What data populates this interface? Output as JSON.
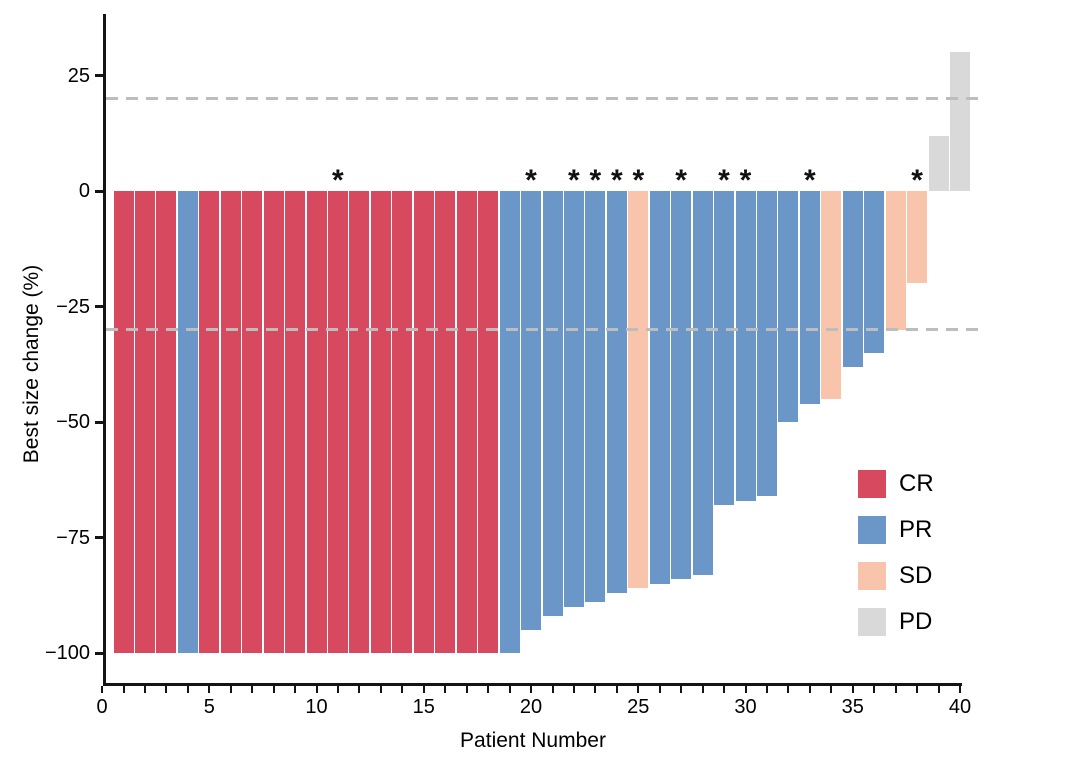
{
  "chart_data": {
    "type": "bar",
    "variant": "waterfall",
    "title": "",
    "xlabel": "Patient Number",
    "ylabel": "Best size change (%)",
    "x_range": [
      0,
      40
    ],
    "x_minor_tick_step": 1,
    "x_tick_labels": [
      0,
      5,
      10,
      15,
      20,
      25,
      30,
      35,
      40
    ],
    "y_tick_values": [
      25,
      0,
      -25,
      -50,
      -75,
      -100
    ],
    "y_tick_labels": [
      "25",
      "0",
      "−25",
      "−50",
      "−75",
      "−100"
    ],
    "ylim": [
      -105,
      37
    ],
    "grid": false,
    "reference_lines": [
      {
        "y": 20,
        "style": "dashed",
        "color": "#bdbdbd"
      },
      {
        "y": -30,
        "style": "dashed",
        "color": "#bdbdbd"
      }
    ],
    "marker_symbol": "*",
    "legend": {
      "position": "inside-right",
      "items": [
        {
          "label": "CR",
          "color": "#d6495f"
        },
        {
          "label": "PR",
          "color": "#6b97c8"
        },
        {
          "label": "SD",
          "color": "#f8c5ac"
        },
        {
          "label": "PD",
          "color": "#d9d9d9"
        }
      ]
    },
    "patients": [
      {
        "n": 1,
        "response": "CR",
        "change": -100,
        "star": false
      },
      {
        "n": 2,
        "response": "CR",
        "change": -100,
        "star": false
      },
      {
        "n": 3,
        "response": "CR",
        "change": -100,
        "star": false
      },
      {
        "n": 4,
        "response": "PR",
        "change": -100,
        "star": false
      },
      {
        "n": 5,
        "response": "CR",
        "change": -100,
        "star": false
      },
      {
        "n": 6,
        "response": "CR",
        "change": -100,
        "star": false
      },
      {
        "n": 7,
        "response": "CR",
        "change": -100,
        "star": false
      },
      {
        "n": 8,
        "response": "CR",
        "change": -100,
        "star": false
      },
      {
        "n": 9,
        "response": "CR",
        "change": -100,
        "star": false
      },
      {
        "n": 10,
        "response": "CR",
        "change": -100,
        "star": false
      },
      {
        "n": 11,
        "response": "CR",
        "change": -100,
        "star": true
      },
      {
        "n": 12,
        "response": "CR",
        "change": -100,
        "star": false
      },
      {
        "n": 13,
        "response": "CR",
        "change": -100,
        "star": false
      },
      {
        "n": 14,
        "response": "CR",
        "change": -100,
        "star": false
      },
      {
        "n": 15,
        "response": "CR",
        "change": -100,
        "star": false
      },
      {
        "n": 16,
        "response": "CR",
        "change": -100,
        "star": false
      },
      {
        "n": 17,
        "response": "CR",
        "change": -100,
        "star": false
      },
      {
        "n": 18,
        "response": "CR",
        "change": -100,
        "star": false
      },
      {
        "n": 19,
        "response": "PR",
        "change": -100,
        "star": false
      },
      {
        "n": 20,
        "response": "PR",
        "change": -95,
        "star": true
      },
      {
        "n": 21,
        "response": "PR",
        "change": -92,
        "star": false
      },
      {
        "n": 22,
        "response": "PR",
        "change": -90,
        "star": true
      },
      {
        "n": 23,
        "response": "PR",
        "change": -89,
        "star": true
      },
      {
        "n": 24,
        "response": "PR",
        "change": -87,
        "star": true
      },
      {
        "n": 25,
        "response": "SD",
        "change": -86,
        "star": true
      },
      {
        "n": 26,
        "response": "PR",
        "change": -85,
        "star": false
      },
      {
        "n": 27,
        "response": "PR",
        "change": -84,
        "star": true
      },
      {
        "n": 28,
        "response": "PR",
        "change": -83,
        "star": false
      },
      {
        "n": 29,
        "response": "PR",
        "change": -68,
        "star": true
      },
      {
        "n": 30,
        "response": "PR",
        "change": -67,
        "star": true
      },
      {
        "n": 31,
        "response": "PR",
        "change": -66,
        "star": false
      },
      {
        "n": 32,
        "response": "PR",
        "change": -50,
        "star": false
      },
      {
        "n": 33,
        "response": "PR",
        "change": -46,
        "star": true
      },
      {
        "n": 34,
        "response": "SD",
        "change": -45,
        "star": false
      },
      {
        "n": 35,
        "response": "PR",
        "change": -38,
        "star": false
      },
      {
        "n": 36,
        "response": "PR",
        "change": -35,
        "star": false
      },
      {
        "n": 37,
        "response": "SD",
        "change": -30,
        "star": false
      },
      {
        "n": 38,
        "response": "SD",
        "change": -20,
        "star": true
      },
      {
        "n": 39,
        "response": "PD",
        "change": 12,
        "star": false
      },
      {
        "n": 40,
        "response": "PD",
        "change": 30,
        "star": false
      }
    ]
  }
}
